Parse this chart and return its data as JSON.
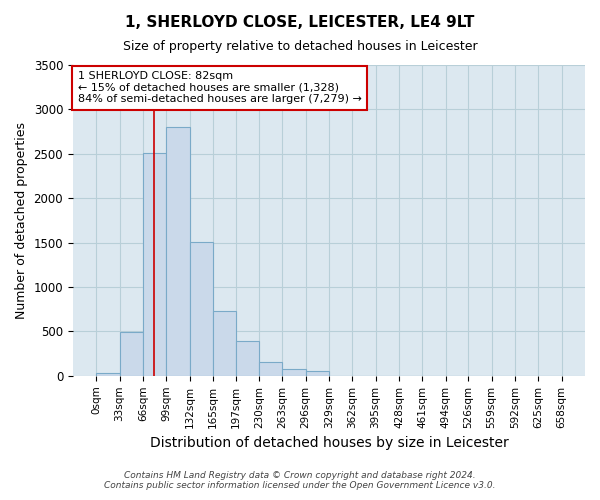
{
  "title": "1, SHERLOYD CLOSE, LEICESTER, LE4 9LT",
  "subtitle": "Size of property relative to detached houses in Leicester",
  "xlabel": "Distribution of detached houses by size in Leicester",
  "ylabel": "Number of detached properties",
  "bar_color": "#cad9ea",
  "bar_edge_color": "#7aaac8",
  "bins": [
    0,
    33,
    66,
    99,
    132,
    165,
    197,
    230,
    263,
    296,
    329,
    362,
    395,
    428,
    461,
    494,
    526,
    559,
    592,
    625,
    658
  ],
  "counts": [
    30,
    490,
    2510,
    2800,
    1510,
    730,
    390,
    150,
    75,
    55,
    0,
    0,
    0,
    0,
    0,
    0,
    0,
    0,
    0,
    0
  ],
  "tick_labels": [
    "0sqm",
    "33sqm",
    "66sqm",
    "99sqm",
    "132sqm",
    "165sqm",
    "197sqm",
    "230sqm",
    "263sqm",
    "296sqm",
    "329sqm",
    "362sqm",
    "395sqm",
    "428sqm",
    "461sqm",
    "494sqm",
    "526sqm",
    "559sqm",
    "592sqm",
    "625sqm",
    "658sqm"
  ],
  "property_size": 82,
  "property_line_color": "#cc0000",
  "annotation_line1": "1 SHERLOYD CLOSE: 82sqm",
  "annotation_line2": "← 15% of detached houses are smaller (1,328)",
  "annotation_line3": "84% of semi-detached houses are larger (7,279) →",
  "annotation_box_edge_color": "#cc0000",
  "ylim": [
    0,
    3500
  ],
  "yticks": [
    0,
    500,
    1000,
    1500,
    2000,
    2500,
    3000,
    3500
  ],
  "footer1": "Contains HM Land Registry data © Crown copyright and database right 2024.",
  "footer2": "Contains public sector information licensed under the Open Government Licence v3.0.",
  "fig_bg_color": "#ffffff",
  "ax_bg_color": "#dce8f0",
  "grid_color": "#b8cfd8",
  "title_fontsize": 11,
  "subtitle_fontsize": 9,
  "tick_fontsize": 7.5,
  "ylabel_fontsize": 9,
  "xlabel_fontsize": 10
}
